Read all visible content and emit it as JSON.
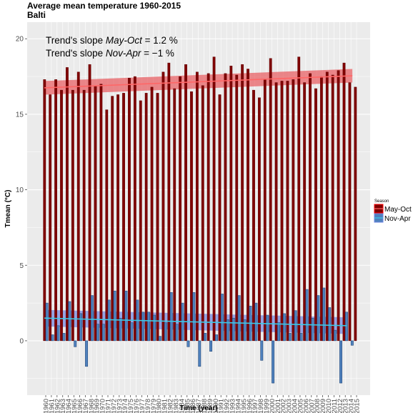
{
  "chart_data": {
    "type": "bar",
    "title": "Average mean temperature 1960-2015",
    "subtitle": "Balti",
    "xlabel": "Time (year)",
    "ylabel": "Tmean (°C)",
    "ylim": [
      -3.6,
      21.1
    ],
    "yticks": [
      0,
      5,
      10,
      15,
      20
    ],
    "grid": true,
    "legend": {
      "title": "Season",
      "placement": "right"
    },
    "annotations": [
      {
        "prefix": "Trend's slope ",
        "period": "May-Oct",
        "equals": " = 1.2 %"
      },
      {
        "prefix": "Trend's slope ",
        "period": "Nov-Apr",
        "equals": " = −1 %"
      }
    ],
    "x": [
      1960,
      1961,
      1962,
      1963,
      1964,
      1965,
      1966,
      1967,
      1968,
      1969,
      1970,
      1971,
      1972,
      1973,
      1974,
      1975,
      1976,
      1977,
      1978,
      1979,
      1980,
      1981,
      1982,
      1983,
      1984,
      1985,
      1986,
      1987,
      1988,
      1989,
      1990,
      1991,
      1992,
      1993,
      1994,
      1995,
      1996,
      1997,
      1998,
      1999,
      2000,
      2001,
      2002,
      2003,
      2004,
      2005,
      2006,
      2007,
      2008,
      2009,
      2010,
      2011,
      2012,
      2013,
      2014,
      2015
    ],
    "series": [
      {
        "name": "May-Oct",
        "color": "#7f0000",
        "values": [
          17.3,
          16.3,
          17.3,
          16.6,
          18.1,
          16.6,
          17.8,
          16.6,
          18.3,
          16.9,
          17.0,
          15.3,
          16.2,
          16.3,
          16.4,
          17.4,
          17.5,
          15.9,
          16.4,
          16.8,
          16.4,
          17.8,
          18.4,
          16.7,
          17.5,
          18.3,
          16.5,
          17.8,
          16.9,
          17.7,
          18.8,
          16.3,
          17.7,
          18.2,
          17.6,
          18.3,
          18.0,
          16.6,
          16.1,
          17.3,
          18.7,
          17.1,
          17.2,
          17.2,
          17.3,
          18.8,
          17.1,
          17.7,
          16.7,
          17.5,
          17.8,
          17.6,
          17.9,
          18.4,
          17.1,
          16.8
        ]
      },
      {
        "name": "Nov-Apr",
        "color": "#4f81bd",
        "values": [
          2.5,
          0.4,
          1.0,
          0.5,
          2.6,
          -0.4,
          1.8,
          -1.7,
          3.0,
          1.1,
          1.1,
          2.7,
          3.3,
          1.5,
          3.3,
          1.2,
          2.7,
          1.9,
          1.9,
          1.7,
          0.3,
          1.2,
          3.2,
          1.1,
          2.5,
          -0.4,
          3.2,
          -1.7,
          0.5,
          -0.7,
          0.4,
          3.1,
          1.4,
          1.5,
          3.0,
          1.4,
          2.3,
          2.5,
          -1.3,
          1.7,
          -2.8,
          1.2,
          1.8,
          0.5,
          2.0,
          0.5,
          3.4,
          1.5,
          3.0,
          3.5,
          2.2,
          0.7,
          -2.8,
          1.9,
          -0.3,
          null
        ]
      }
    ],
    "trends": [
      {
        "series": "May-Oct",
        "start": [
          1960,
          16.75
        ],
        "end": [
          2014,
          17.55
        ],
        "band": 0.45,
        "line_color": "#ff6666",
        "band_color": "#e8595d"
      },
      {
        "series": "Nov-Apr",
        "start": [
          1960,
          1.5
        ],
        "end": [
          2013,
          1.0
        ],
        "band": 0.55,
        "line_color": "#3cc8e6",
        "band_color": "#6f85e0"
      }
    ]
  }
}
